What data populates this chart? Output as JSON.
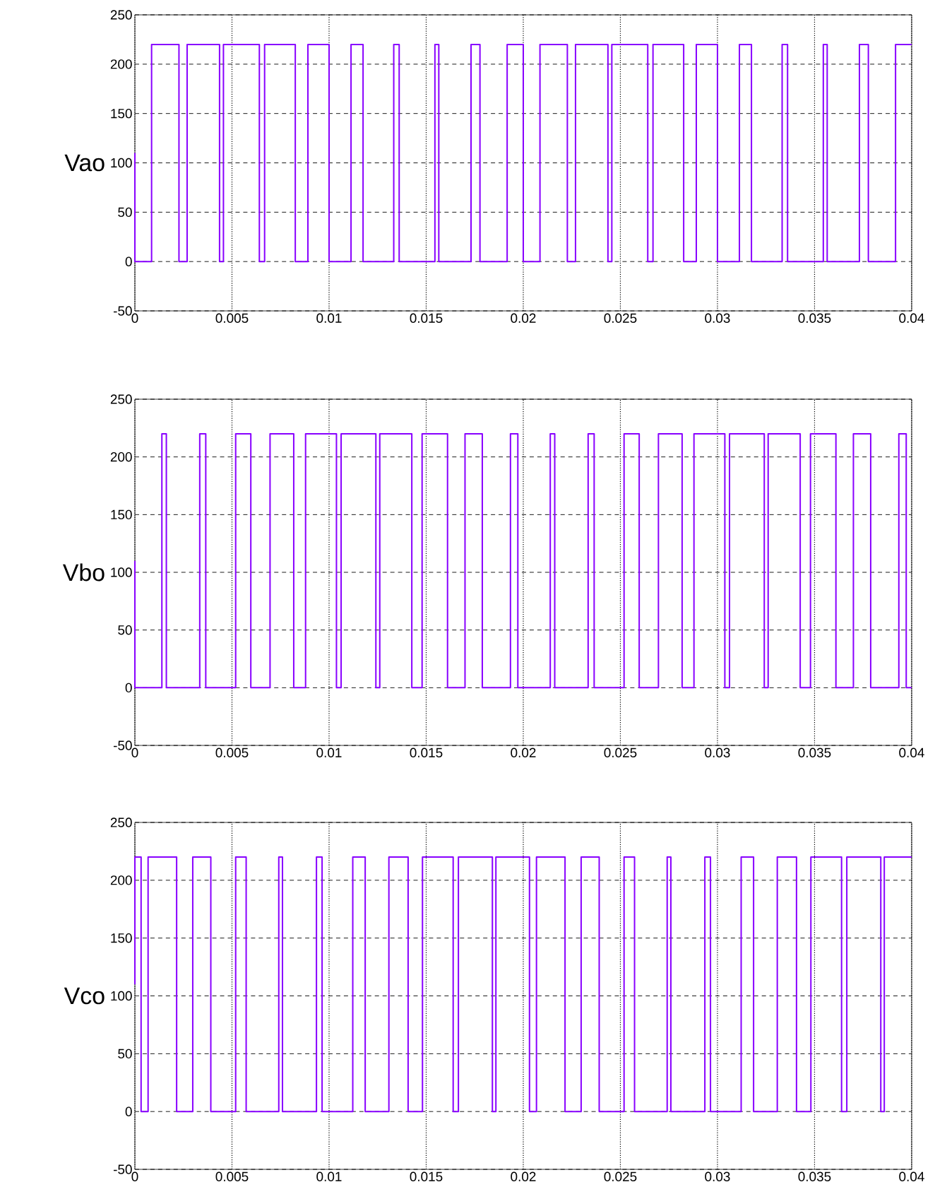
{
  "chart_data": [
    {
      "type": "step",
      "ylabel": "Vao",
      "xlim": [
        0,
        0.04
      ],
      "ylim": [
        -50,
        250
      ],
      "xticks": [
        0,
        0.005,
        0.01,
        0.015,
        0.02,
        0.025,
        0.03,
        0.035,
        0.04
      ],
      "yticks": [
        -50,
        0,
        50,
        100,
        150,
        200,
        250
      ],
      "grid": true,
      "series": [
        {
          "color": "#8800ff",
          "x": [
            0,
            0,
            0.00086,
            0.00227,
            0.00269,
            0.00436,
            0.00456,
            0.00641,
            0.00668,
            0.00826,
            0.00891,
            0.01,
            0.01113,
            0.01175,
            0.01333,
            0.01361,
            0.01545,
            0.01565,
            0.01731,
            0.01777,
            0.01917,
            0.02,
            0.02086,
            0.02227,
            0.02269,
            0.02436,
            0.02456,
            0.02641,
            0.02668,
            0.02826,
            0.02891,
            0.03,
            0.03113,
            0.03175,
            0.03333,
            0.03361,
            0.03545,
            0.03565,
            0.03731,
            0.03777,
            0.03917,
            0.04
          ],
          "values": [
            110,
            0,
            220,
            0,
            220,
            0,
            220,
            0,
            220,
            0,
            220,
            0,
            220,
            0,
            220,
            0,
            220,
            0,
            220,
            0,
            220,
            0,
            220,
            0,
            220,
            0,
            220,
            0,
            220,
            0,
            220,
            0,
            220,
            0,
            220,
            0,
            220,
            0,
            220,
            0,
            220,
            220
          ]
        }
      ]
    },
    {
      "type": "step",
      "ylabel": "Vbo",
      "xlim": [
        0,
        0.04
      ],
      "ylim": [
        -50,
        250
      ],
      "xticks": [
        0,
        0.005,
        0.01,
        0.015,
        0.02,
        0.025,
        0.03,
        0.035,
        0.04
      ],
      "yticks": [
        -50,
        0,
        50,
        100,
        150,
        200,
        250
      ],
      "grid": true,
      "series": [
        {
          "color": "#8800ff",
          "x": [
            0,
            0,
            0.00139,
            0.00162,
            0.00334,
            0.00365,
            0.00519,
            0.00597,
            0.00696,
            0.00818,
            0.00879,
            0.01038,
            0.01062,
            0.01241,
            0.01261,
            0.01426,
            0.01479,
            0.0161,
            0.017,
            0.01789,
            0.01934,
            0.01972,
            0.02139,
            0.02162,
            0.02334,
            0.02365,
            0.02519,
            0.02597,
            0.02696,
            0.02818,
            0.02879,
            0.03038,
            0.03062,
            0.03241,
            0.03261,
            0.03426,
            0.03479,
            0.0361,
            0.037,
            0.03789,
            0.03934,
            0.03972,
            0.04
          ],
          "values": [
            110,
            0,
            220,
            0,
            220,
            0,
            220,
            0,
            220,
            0,
            220,
            0,
            220,
            0,
            220,
            0,
            220,
            0,
            220,
            0,
            220,
            0,
            220,
            0,
            220,
            0,
            220,
            0,
            220,
            0,
            220,
            0,
            220,
            0,
            220,
            0,
            220,
            0,
            220,
            0,
            220,
            0,
            0
          ]
        }
      ]
    },
    {
      "type": "step",
      "ylabel": "Vco",
      "xlim": [
        0,
        0.04
      ],
      "ylim": [
        -50,
        250
      ],
      "xticks": [
        0,
        0.005,
        0.01,
        0.015,
        0.02,
        0.025,
        0.03,
        0.035,
        0.04
      ],
      "yticks": [
        -50,
        0,
        50,
        100,
        150,
        200,
        250
      ],
      "grid": true,
      "series": [
        {
          "color": "#8800ff",
          "x": [
            0,
            0,
            0.00032,
            0.00068,
            0.00215,
            0.00298,
            0.00391,
            0.00519,
            0.00573,
            0.00741,
            0.0076,
            0.00935,
            0.00964,
            0.01122,
            0.01186,
            0.01308,
            0.01407,
            0.01481,
            0.01639,
            0.01666,
            0.01841,
            0.01859,
            0.02032,
            0.02068,
            0.02215,
            0.02298,
            0.02391,
            0.02519,
            0.02573,
            0.02741,
            0.0276,
            0.02935,
            0.02964,
            0.03122,
            0.03186,
            0.03308,
            0.03407,
            0.03481,
            0.03639,
            0.03666,
            0.03841,
            0.03859,
            0.04
          ],
          "values": [
            110,
            220,
            0,
            220,
            0,
            220,
            0,
            220,
            0,
            220,
            0,
            220,
            0,
            220,
            0,
            220,
            0,
            220,
            0,
            220,
            0,
            220,
            0,
            220,
            0,
            220,
            0,
            220,
            0,
            220,
            0,
            220,
            0,
            220,
            0,
            220,
            0,
            220,
            0,
            220,
            0,
            220,
            220
          ]
        }
      ]
    }
  ]
}
